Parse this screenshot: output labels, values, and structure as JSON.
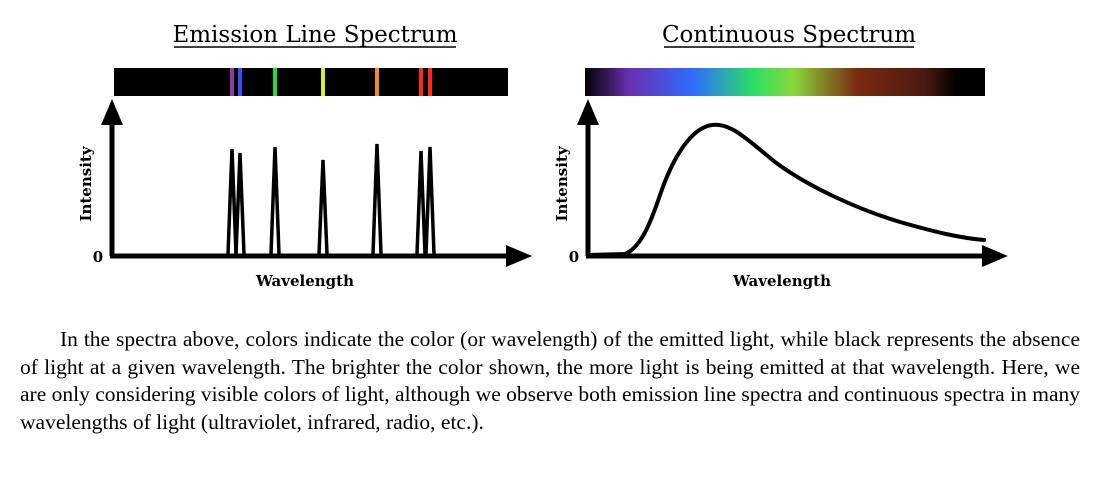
{
  "left_panel": {
    "title": "Emission Line Spectrum",
    "ylabel": "Intensity",
    "xlabel": "Wavelength",
    "zero_label": "0",
    "lines": [
      {
        "color": "#8b3aa8"
      },
      {
        "color": "#3b4cff"
      },
      {
        "color": "#22dd33"
      },
      {
        "color": "#d6ee2a"
      },
      {
        "color": "#f08a22"
      },
      {
        "color": "#ff2a1a"
      },
      {
        "color": "#ff2a1a"
      }
    ]
  },
  "right_panel": {
    "title": "Continuous Spectrum",
    "ylabel": "Intensity",
    "xlabel": "Wavelength",
    "zero_label": "0",
    "gradient_colors": [
      "#000000",
      "#6a2fb0",
      "#2f6bff",
      "#2adf66",
      "#8ad83a",
      "#7a2a10",
      "#4a1a10",
      "#000000"
    ]
  },
  "caption": "In the spectra above, colors indicate the color (or wavelength) of the emitted light, while black represents the absence of light at a given wavelength. The brighter the color shown, the more light is being emitted at that wavelength. Here, we are only considering visible colors of light, although we observe both emission line spectra and continuous spectra in many wavelengths of light (ultraviolet, infrared, radio, etc.)."
}
